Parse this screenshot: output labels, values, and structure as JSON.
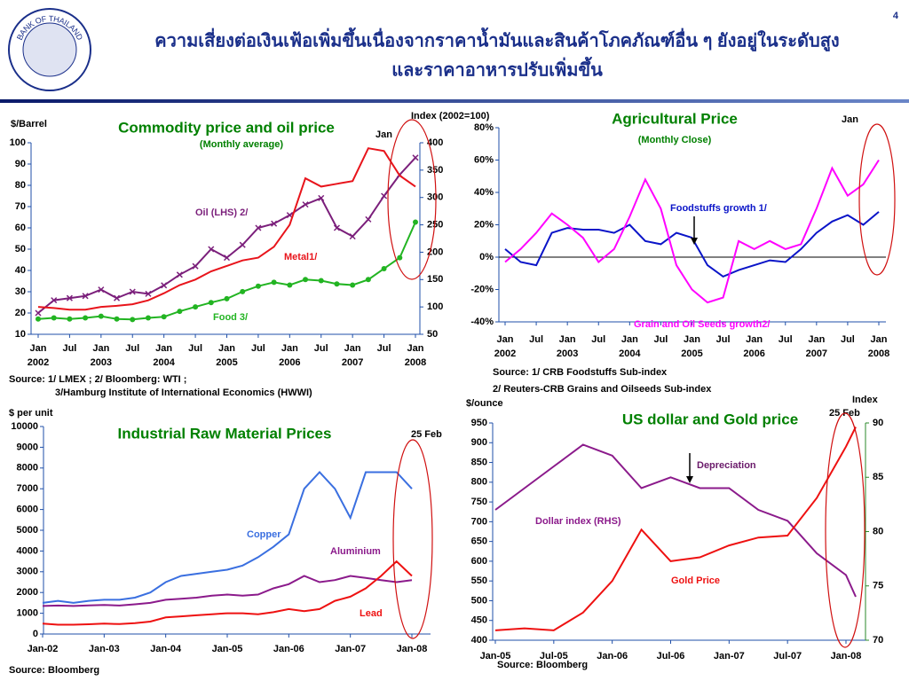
{
  "page": {
    "number": "4",
    "logo_text": "BANK OF THAILAND",
    "title_lines": [
      "ความเสี่ยงต่อเงินเฟ้อเพิ่มขึ้นเนื่องจากราคาน้ำมันและสินค้าโภคภัณฑ์อื่น ๆ ยังอยู่ในระดับสูง",
      "และราคาอาหารปรับเพิ่มขึ้น"
    ]
  },
  "chart_data": [
    {
      "type": "line",
      "title": "Commodity price and oil price",
      "subtitle": "(Monthly average)",
      "y_label": "$/Barrel",
      "y2_label": "Index (2002=100)",
      "x": [
        "2002-01",
        "2002-04",
        "2002-07",
        "2002-10",
        "2003-01",
        "2003-04",
        "2003-07",
        "2003-10",
        "2004-01",
        "2004-04",
        "2004-07",
        "2004-10",
        "2005-01",
        "2005-04",
        "2005-07",
        "2005-10",
        "2006-01",
        "2006-04",
        "2006-07",
        "2006-10",
        "2007-01",
        "2007-04",
        "2007-07",
        "2007-10",
        "2008-01"
      ],
      "xlim": [
        "2002-01",
        "2008-01"
      ],
      "xticks": [
        {
          "value": "2002-01",
          "label": "Jan"
        },
        {
          "value": "2002-07",
          "label": "Jul"
        },
        {
          "value": "2003-01",
          "label": "Jan"
        },
        {
          "value": "2003-07",
          "label": "Jul"
        },
        {
          "value": "2004-01",
          "label": "Jan"
        },
        {
          "value": "2004-07",
          "label": "Jul"
        },
        {
          "value": "2005-01",
          "label": "Jan"
        },
        {
          "value": "2005-07",
          "label": "Jul"
        },
        {
          "value": "2006-01",
          "label": "Jan"
        },
        {
          "value": "2006-07",
          "label": "Jul"
        },
        {
          "value": "2007-01",
          "label": "Jan"
        },
        {
          "value": "2007-07",
          "label": "Jul"
        },
        {
          "value": "2008-01",
          "label": "Jan"
        }
      ],
      "xtick_years": [
        {
          "value": "2002-01",
          "label": "2002"
        },
        {
          "value": "2003-01",
          "label": "2003"
        },
        {
          "value": "2004-01",
          "label": "2004"
        },
        {
          "value": "2005-01",
          "label": "2005"
        },
        {
          "value": "2006-01",
          "label": "2006"
        },
        {
          "value": "2007-01",
          "label": "2007"
        },
        {
          "value": "2008-01",
          "label": "2008"
        }
      ],
      "ylim": [
        10,
        100
      ],
      "yticks": [
        10,
        20,
        30,
        40,
        50,
        60,
        70,
        80,
        90,
        100
      ],
      "y2lim": [
        50,
        400
      ],
      "y2ticks": [
        50,
        100,
        150,
        200,
        250,
        300,
        350,
        400
      ],
      "series": [
        {
          "name": "Oil (LHS) 2/",
          "color": "#7b1f7b",
          "marker": "x",
          "values": [
            20,
            26,
            27,
            28,
            31,
            27,
            30,
            29,
            33,
            38,
            42,
            50,
            46,
            52,
            60,
            62,
            66,
            71,
            74,
            60,
            56,
            64,
            75,
            85,
            93
          ]
        },
        {
          "name": "Metal1/",
          "color": "#e8141b",
          "axis": "y2",
          "values": [
            100,
            98,
            95,
            95,
            100,
            102,
            105,
            112,
            125,
            140,
            150,
            165,
            175,
            185,
            190,
            210,
            250,
            335,
            320,
            325,
            330,
            390,
            385,
            340,
            320
          ]
        },
        {
          "name": "Food 3/",
          "color": "#22b422",
          "axis": "y2",
          "marker": "o",
          "values": [
            78,
            80,
            78,
            80,
            83,
            78,
            77,
            80,
            82,
            92,
            100,
            108,
            115,
            128,
            138,
            145,
            140,
            150,
            148,
            142,
            140,
            150,
            170,
            190,
            255
          ]
        }
      ],
      "annotations": [
        "Jan"
      ],
      "sources": [
        "Source: 1/ LMEX ;  2/ Bloomberg: WTI ;",
        "3/Hamburg Institute of International Economics (HWWI)"
      ]
    },
    {
      "type": "line",
      "title": "Agricultural Price",
      "subtitle": "(Monthly Close)",
      "x": [
        "2002-01",
        "2002-04",
        "2002-07",
        "2002-10",
        "2003-01",
        "2003-04",
        "2003-07",
        "2003-10",
        "2004-01",
        "2004-04",
        "2004-07",
        "2004-10",
        "2005-01",
        "2005-04",
        "2005-07",
        "2005-10",
        "2006-01",
        "2006-04",
        "2006-07",
        "2006-10",
        "2007-01",
        "2007-04",
        "2007-07",
        "2007-10",
        "2008-01"
      ],
      "xlim": [
        "2002-01",
        "2008-01"
      ],
      "xticks": [
        {
          "value": "2002-01",
          "label": "Jan"
        },
        {
          "value": "2002-07",
          "label": "Jul"
        },
        {
          "value": "2003-01",
          "label": "Jan"
        },
        {
          "value": "2003-07",
          "label": "Jul"
        },
        {
          "value": "2004-01",
          "label": "Jan"
        },
        {
          "value": "2004-07",
          "label": "Jul"
        },
        {
          "value": "2005-01",
          "label": "Jan"
        },
        {
          "value": "2005-07",
          "label": "Jul"
        },
        {
          "value": "2006-01",
          "label": "Jan"
        },
        {
          "value": "2006-07",
          "label": "Jul"
        },
        {
          "value": "2007-01",
          "label": "Jan"
        },
        {
          "value": "2007-07",
          "label": "Jul"
        },
        {
          "value": "2008-01",
          "label": "Jan"
        }
      ],
      "xtick_years": [
        {
          "value": "2002-01",
          "label": "2002"
        },
        {
          "value": "2003-01",
          "label": "2003"
        },
        {
          "value": "2004-01",
          "label": "2004"
        },
        {
          "value": "2005-01",
          "label": "2005"
        },
        {
          "value": "2006-01",
          "label": "2006"
        },
        {
          "value": "2007-01",
          "label": "2007"
        },
        {
          "value": "2008-01",
          "label": "2008"
        }
      ],
      "ylim": [
        -40,
        80
      ],
      "yticks": [
        {
          "value": -40,
          "label": "-40%"
        },
        {
          "value": -20,
          "label": "-20%"
        },
        {
          "value": 0,
          "label": "0%"
        },
        {
          "value": 20,
          "label": "20%"
        },
        {
          "value": 40,
          "label": "40%"
        },
        {
          "value": 60,
          "label": "60%"
        },
        {
          "value": 80,
          "label": "80%"
        }
      ],
      "series": [
        {
          "name": "Foodstuffs growth 1/",
          "color": "#0a14c8",
          "values": [
            5,
            -3,
            -5,
            15,
            18,
            17,
            17,
            15,
            20,
            10,
            8,
            15,
            12,
            -5,
            -12,
            -8,
            -5,
            -2,
            -3,
            5,
            15,
            22,
            26,
            20,
            28
          ]
        },
        {
          "name": "Grain and Oil Seeds  growth2/",
          "color": "#ff00ff",
          "values": [
            -3,
            5,
            15,
            27,
            20,
            12,
            -3,
            5,
            25,
            48,
            30,
            -5,
            -20,
            -28,
            -25,
            10,
            5,
            10,
            5,
            8,
            30,
            55,
            38,
            45,
            60
          ]
        }
      ],
      "annotations": [
        "Jan"
      ],
      "sources": [
        "Source: 1/ CRB Foodstuffs Sub-index",
        "2/ Reuters-CRB Grains and Oilseeds Sub-index"
      ]
    },
    {
      "type": "line",
      "title": "Industrial Raw Material Prices",
      "y_label": "$ per unit",
      "x": [
        "2002-01",
        "2002-04",
        "2002-07",
        "2002-10",
        "2003-01",
        "2003-04",
        "2003-07",
        "2003-10",
        "2004-01",
        "2004-04",
        "2004-07",
        "2004-10",
        "2005-01",
        "2005-04",
        "2005-07",
        "2005-10",
        "2006-01",
        "2006-04",
        "2006-07",
        "2006-10",
        "2007-01",
        "2007-04",
        "2007-07",
        "2007-10",
        "2008-01"
      ],
      "xlim": [
        "2002-01",
        "2008-01"
      ],
      "xticks": [
        {
          "value": "2002-01",
          "label": "Jan-02"
        },
        {
          "value": "2003-01",
          "label": "Jan-03"
        },
        {
          "value": "2004-01",
          "label": "Jan-04"
        },
        {
          "value": "2005-01",
          "label": "Jan-05"
        },
        {
          "value": "2006-01",
          "label": "Jan-06"
        },
        {
          "value": "2007-01",
          "label": "Jan-07"
        },
        {
          "value": "2008-01",
          "label": "Jan-08"
        }
      ],
      "ylim": [
        0,
        10000
      ],
      "yticks": [
        0,
        1000,
        2000,
        3000,
        4000,
        5000,
        6000,
        7000,
        8000,
        9000,
        10000
      ],
      "series": [
        {
          "name": "Copper",
          "color": "#3a6fe0",
          "values": [
            1500,
            1600,
            1500,
            1600,
            1650,
            1650,
            1750,
            2000,
            2500,
            2800,
            2900,
            3000,
            3100,
            3300,
            3700,
            4200,
            4800,
            7000,
            7800,
            7000,
            5600,
            7800,
            7800,
            7800,
            7000
          ]
        },
        {
          "name": "Aluminium",
          "color": "#8b1a8b",
          "values": [
            1350,
            1370,
            1350,
            1380,
            1400,
            1370,
            1430,
            1500,
            1650,
            1700,
            1750,
            1850,
            1900,
            1850,
            1900,
            2200,
            2400,
            2800,
            2500,
            2600,
            2800,
            2700,
            2600,
            2500,
            2600
          ]
        },
        {
          "name": "Lead",
          "color": "#ee1111",
          "values": [
            500,
            450,
            450,
            470,
            500,
            480,
            520,
            600,
            800,
            850,
            900,
            950,
            1000,
            1000,
            950,
            1050,
            1200,
            1100,
            1200,
            1600,
            1800,
            2200,
            2800,
            3500,
            2800
          ]
        }
      ],
      "annotations": [
        "25 Feb"
      ],
      "sources": [
        "Source: Bloomberg"
      ]
    },
    {
      "type": "line",
      "title": "US dollar and Gold price",
      "y_label": "$/ounce",
      "y2_label": "Index",
      "x": [
        "2005-01",
        "2005-04",
        "2005-07",
        "2005-10",
        "2006-01",
        "2006-04",
        "2006-07",
        "2006-10",
        "2007-01",
        "2007-04",
        "2007-07",
        "2007-10",
        "2008-01",
        "2008-02"
      ],
      "xlim": [
        "2005-01",
        "2008-01"
      ],
      "xticks": [
        {
          "value": "2005-01",
          "label": "Jan-05"
        },
        {
          "value": "2005-07",
          "label": "Jul-05"
        },
        {
          "value": "2006-01",
          "label": "Jan-06"
        },
        {
          "value": "2006-07",
          "label": "Jul-06"
        },
        {
          "value": "2007-01",
          "label": "Jan-07"
        },
        {
          "value": "2007-07",
          "label": "Jul-07"
        },
        {
          "value": "2008-01",
          "label": "Jan-08"
        }
      ],
      "ylim": [
        400,
        950
      ],
      "yticks": [
        400,
        450,
        500,
        550,
        600,
        650,
        700,
        750,
        800,
        850,
        900,
        950
      ],
      "y2lim": [
        70,
        90
      ],
      "y2ticks": [
        70,
        75,
        80,
        85,
        90
      ],
      "series": [
        {
          "name": "Dollar index  (RHS)",
          "color": "#8b1a8b",
          "axis": "y2",
          "values": [
            82,
            84,
            86,
            88,
            87,
            84,
            85,
            84,
            84,
            82,
            81,
            78,
            76,
            74
          ]
        },
        {
          "name": "Gold Price",
          "color": "#ee1111",
          "values": [
            425,
            430,
            425,
            470,
            550,
            680,
            600,
            610,
            640,
            660,
            665,
            760,
            890,
            940
          ]
        }
      ],
      "annotations": [
        "Depreciation",
        "25 Feb"
      ],
      "sources": [
        "Source: Bloomberg"
      ]
    }
  ]
}
